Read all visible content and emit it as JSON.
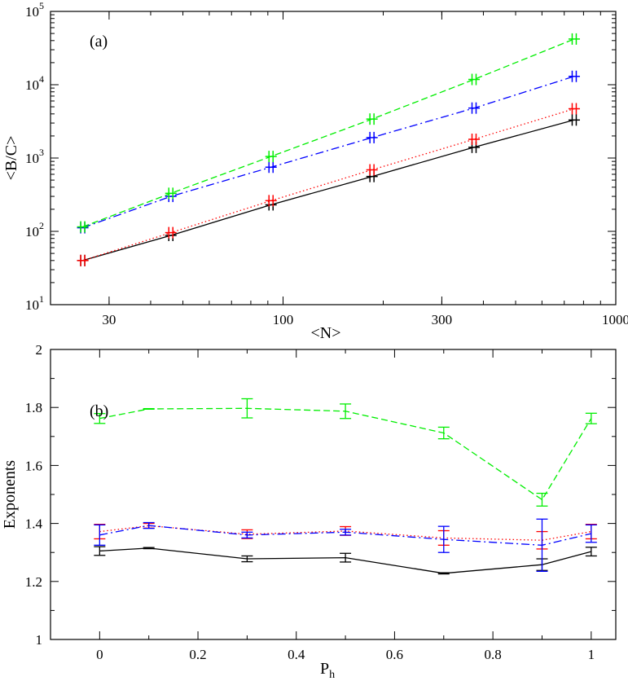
{
  "chart_data": [
    {
      "type": "line",
      "panel_label": "(a)",
      "xlabel": "<N>",
      "ylabel": "<B/C>",
      "xscale": "log",
      "yscale": "log",
      "xlim": [
        20,
        1000
      ],
      "ylim": [
        10,
        100000
      ],
      "xticks": [
        {
          "value": 30,
          "label": "30"
        },
        {
          "value": 100,
          "label": "100"
        },
        {
          "value": 300,
          "label": "300"
        },
        {
          "value": 1000,
          "label": "1000"
        }
      ],
      "yticks": [
        {
          "value": 10,
          "base": "10",
          "exp": "1"
        },
        {
          "value": 100,
          "base": "10",
          "exp": "2"
        },
        {
          "value": 1000,
          "base": "10",
          "exp": "3"
        },
        {
          "value": 10000,
          "base": "10",
          "exp": "4"
        },
        {
          "value": 100000,
          "base": "10",
          "exp": "5"
        }
      ],
      "series": [
        {
          "name": "black",
          "color": "#000000",
          "dash": "",
          "x": [
            25,
            46,
            92,
            185,
            375,
            750
          ],
          "y": [
            40,
            88,
            230,
            560,
            1400,
            3300
          ]
        },
        {
          "name": "red",
          "color": "#ff0000",
          "dash": "1.5,3",
          "x": [
            25,
            46,
            92,
            185,
            375,
            750
          ],
          "y": [
            40,
            96,
            262,
            690,
            1800,
            4700
          ]
        },
        {
          "name": "blue",
          "color": "#0000ff",
          "dash": "10,4,2,4",
          "x": [
            25,
            46,
            92,
            185,
            375,
            750
          ],
          "y": [
            112,
            300,
            750,
            1900,
            4800,
            13000
          ]
        },
        {
          "name": "green",
          "color": "#00ee00",
          "dash": "8,4",
          "x": [
            25,
            46,
            92,
            185,
            375,
            750
          ],
          "y": [
            115,
            330,
            1050,
            3400,
            11800,
            42000
          ]
        }
      ]
    },
    {
      "type": "line",
      "panel_label": "(b)",
      "xlabel": "P",
      "xlabel_sub": "h",
      "ylabel": "Exponents",
      "xscale": "linear",
      "yscale": "linear",
      "xlim": [
        -0.1,
        1.05
      ],
      "ylim": [
        1,
        2
      ],
      "xticks": [
        {
          "value": 0,
          "label": "0"
        },
        {
          "value": 0.2,
          "label": "0.2"
        },
        {
          "value": 0.4,
          "label": "0.4"
        },
        {
          "value": 0.6,
          "label": "0.6"
        },
        {
          "value": 0.8,
          "label": "0.8"
        },
        {
          "value": 1,
          "label": "1"
        }
      ],
      "yticks": [
        {
          "value": 1,
          "label": "1"
        },
        {
          "value": 1.2,
          "label": "1.2"
        },
        {
          "value": 1.4,
          "label": "1.4"
        },
        {
          "value": 1.6,
          "label": "1.6"
        },
        {
          "value": 1.8,
          "label": "1.8"
        },
        {
          "value": 2,
          "label": "2"
        }
      ],
      "series": [
        {
          "name": "black",
          "color": "#000000",
          "dash": "",
          "x": [
            0,
            0.1,
            0.3,
            0.5,
            0.7,
            0.9,
            1
          ],
          "y": [
            1.305,
            1.315,
            1.278,
            1.282,
            1.228,
            1.258,
            1.303
          ],
          "err": [
            0.015,
            0.002,
            0.01,
            0.015,
            0.002,
            0.02,
            0.015
          ]
        },
        {
          "name": "red",
          "color": "#ff0000",
          "dash": "1.5,3",
          "x": [
            0,
            0.1,
            0.3,
            0.5,
            0.7,
            0.9,
            1
          ],
          "y": [
            1.372,
            1.392,
            1.363,
            1.374,
            1.35,
            1.342,
            1.372
          ],
          "err": [
            0.025,
            0.008,
            0.015,
            0.015,
            0.025,
            0.03,
            0.025
          ]
        },
        {
          "name": "blue",
          "color": "#0000ff",
          "dash": "10,4,2,4",
          "x": [
            0,
            0.1,
            0.3,
            0.5,
            0.7,
            0.9,
            1
          ],
          "y": [
            1.36,
            1.393,
            1.36,
            1.37,
            1.345,
            1.325,
            1.365
          ],
          "err": [
            0.035,
            0.01,
            0.01,
            0.01,
            0.045,
            0.09,
            0.03
          ]
        },
        {
          "name": "green",
          "color": "#00ee00",
          "dash": "8,4",
          "x": [
            0,
            0.1,
            0.3,
            0.5,
            0.7,
            0.9,
            1
          ],
          "y": [
            1.762,
            1.795,
            1.797,
            1.787,
            1.712,
            1.482,
            1.762
          ],
          "err": [
            0.017,
            0.001,
            0.033,
            0.025,
            0.02,
            0.022,
            0.018
          ]
        }
      ]
    }
  ]
}
